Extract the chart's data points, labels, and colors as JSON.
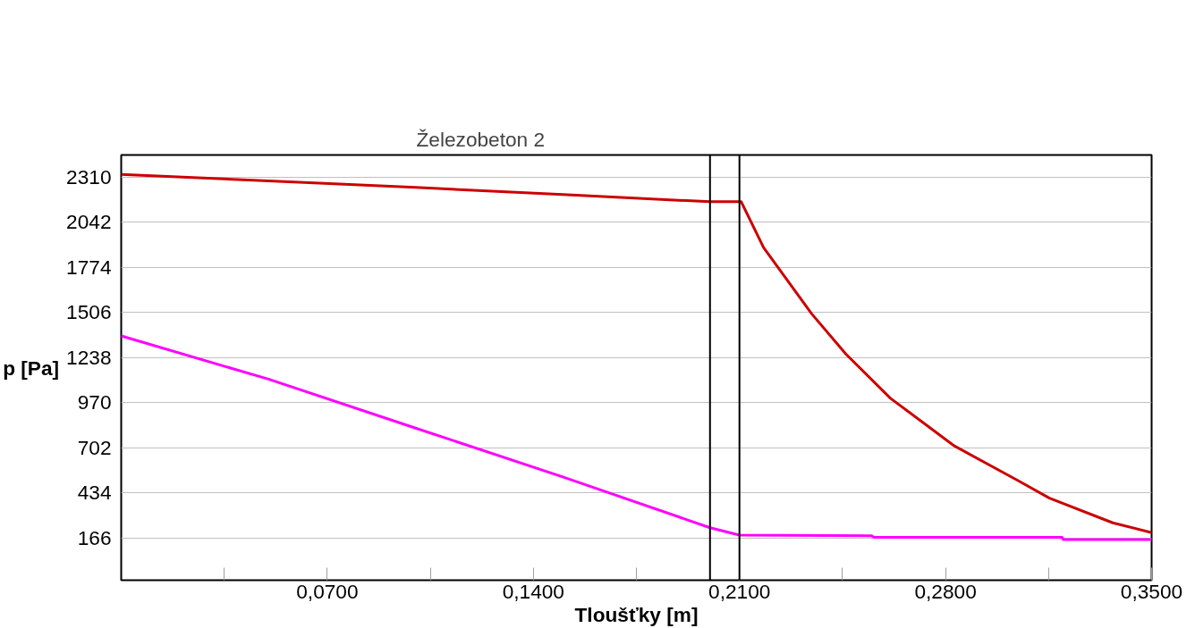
{
  "chart_data": {
    "type": "line",
    "xlabel": "Tloušťky [m]",
    "ylabel": "p [Pa]",
    "annotations": [
      "Železobeton 2"
    ],
    "series": [
      {
        "color": "#cc0000",
        "x": [
          0,
          0.05,
          0.1,
          0.15,
          0.2,
          0.2106,
          0.2182,
          0.2345,
          0.2462,
          0.2613,
          0.283,
          0.3045,
          0.3153,
          0.3368,
          0.35
        ],
        "values": [
          2325,
          2287,
          2248,
          2206,
          2163,
          2163,
          1891,
          1498,
          1257,
          995,
          712,
          507,
          402,
          255,
          197
        ]
      },
      {
        "color": "#ff00ff",
        "x": [
          0,
          0.05,
          0.1,
          0.15,
          0.2,
          0.21,
          0.255,
          0.2556,
          0.3196,
          0.32,
          0.35
        ],
        "values": [
          1366,
          1109,
          818,
          528,
          226,
          182,
          178,
          169,
          169,
          155,
          155
        ]
      }
    ],
    "ref_lines": [
      {
        "axis": "x",
        "value": 0.2,
        "color": "#000000"
      },
      {
        "axis": "x",
        "value": 0.21,
        "color": "#000000"
      }
    ],
    "xlim": [
      0,
      0.35
    ],
    "ylim": [
      -86,
      2441
    ],
    "xticks": [
      {
        "value": 0.035,
        "label": null
      },
      {
        "value": 0.07,
        "label": "0,0700"
      },
      {
        "value": 0.105,
        "label": null
      },
      {
        "value": 0.14,
        "label": "0,1400"
      },
      {
        "value": 0.175,
        "label": null
      },
      {
        "value": 0.21,
        "label": "0,2100"
      },
      {
        "value": 0.245,
        "label": null
      },
      {
        "value": 0.28,
        "label": "0,2800"
      },
      {
        "value": 0.315,
        "label": null
      },
      {
        "value": 0.35,
        "label": "0,3500"
      }
    ],
    "yticks": [
      166,
      434,
      702,
      970,
      1238,
      1506,
      1774,
      2042,
      2310
    ],
    "grid": "y",
    "marker": "none",
    "line_style": "solid"
  }
}
